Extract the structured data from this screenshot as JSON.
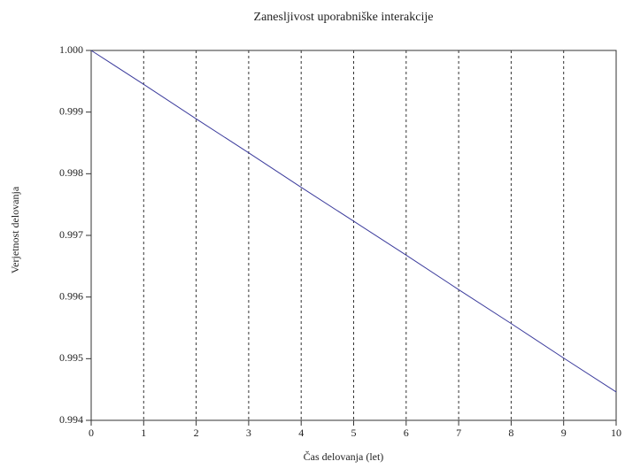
{
  "chart_data": {
    "type": "line",
    "title": "Zanesljivost uporabniške interakcije",
    "xlabel": "Čas delovanja (let)",
    "ylabel": "Verjetnost delovanja",
    "x": [
      0,
      1,
      2,
      3,
      4,
      5,
      6,
      7,
      8,
      9,
      10
    ],
    "series": [
      {
        "name": "Verjetnost delovanja",
        "color": "#3b3b9c",
        "values": [
          1.0,
          0.99945,
          0.99889,
          0.99834,
          0.99778,
          0.99723,
          0.99668,
          0.99612,
          0.99557,
          0.99501,
          0.99446
        ]
      }
    ],
    "xlim": [
      0,
      10
    ],
    "xticks": [
      0,
      1,
      2,
      3,
      4,
      5,
      6,
      7,
      8,
      9,
      10
    ],
    "ylim": [
      0.994,
      1.0
    ],
    "yticks": [
      {
        "value": 0.994,
        "label": "0.994"
      },
      {
        "value": 0.995,
        "label": "0.995"
      },
      {
        "value": 0.996,
        "label": "0.996"
      },
      {
        "value": 0.997,
        "label": "0.997"
      },
      {
        "value": 0.998,
        "label": "0.998"
      },
      {
        "value": 0.999,
        "label": "0.999"
      },
      {
        "value": 1.0,
        "label": "1.000"
      }
    ],
    "grid": "x"
  }
}
